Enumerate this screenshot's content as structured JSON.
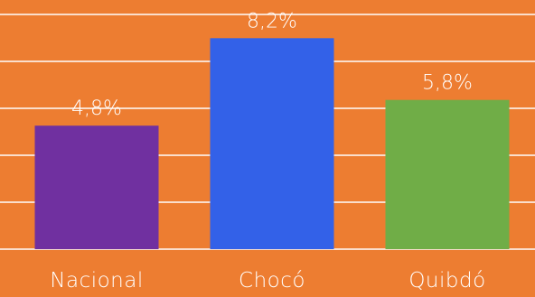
{
  "chart_data": {
    "type": "bar",
    "categories": [
      "Nacional",
      "Chocó",
      "Quibdó"
    ],
    "values": [
      4.8,
      8.2,
      5.8
    ],
    "value_labels": [
      "4,8%",
      "8,2%",
      "5,8%"
    ],
    "ylim": [
      0,
      9
    ],
    "grid": true,
    "colors": {
      "background": "#ED7D31",
      "grid": "#ffffff",
      "bars": [
        "#7030A0",
        "#3361E8",
        "#70AD47"
      ],
      "text": "#ffffff"
    }
  }
}
